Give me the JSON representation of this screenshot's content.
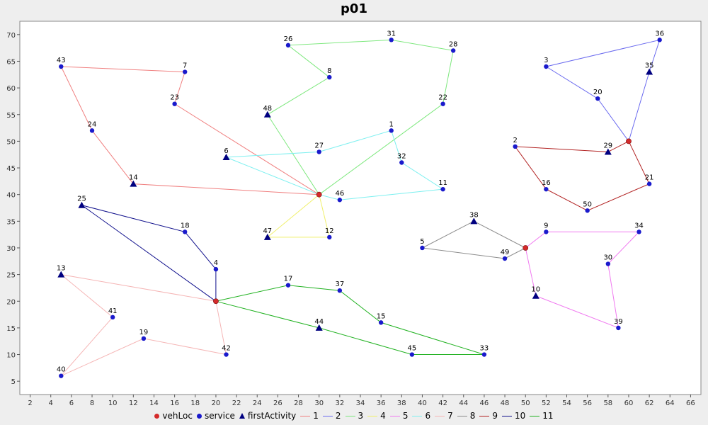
{
  "chart_data": {
    "type": "scatter",
    "title": "p01",
    "xlabel": "",
    "ylabel": "",
    "xlim": [
      1,
      67
    ],
    "ylim": [
      2.5,
      72.5
    ],
    "x_ticks": [
      2,
      4,
      6,
      8,
      10,
      12,
      14,
      16,
      18,
      20,
      22,
      24,
      26,
      28,
      30,
      32,
      34,
      36,
      38,
      40,
      42,
      44,
      46,
      48,
      50,
      52,
      54,
      56,
      58,
      60,
      62,
      64,
      66
    ],
    "y_ticks": [
      5,
      10,
      15,
      20,
      25,
      30,
      35,
      40,
      45,
      50,
      55,
      60,
      65,
      70
    ],
    "grid": false,
    "legend": "bottom",
    "colors": {
      "vehLoc": "#d42a2a",
      "service": "#1a1acc",
      "firstActivity": "#000080",
      "background": "#eeeeee"
    },
    "legend_items": [
      {
        "label": "vehLoc",
        "symbol": "dot",
        "color": "#d42a2a"
      },
      {
        "label": "service",
        "symbol": "dot",
        "color": "#1a1acc"
      },
      {
        "label": "firstActivity",
        "symbol": "triangle",
        "color": "#000080"
      },
      {
        "label": "1",
        "symbol": "line",
        "color": "#f08080"
      },
      {
        "label": "2",
        "symbol": "line",
        "color": "#6b6bef"
      },
      {
        "label": "3",
        "symbol": "line",
        "color": "#7ee87e"
      },
      {
        "label": "4",
        "symbol": "line",
        "color": "#f0f06a"
      },
      {
        "label": "5",
        "symbol": "line",
        "color": "#f07af0"
      },
      {
        "label": "6",
        "symbol": "line",
        "color": "#7ef0f0"
      },
      {
        "label": "7",
        "symbol": "line",
        "color": "#f5b5b5"
      },
      {
        "label": "8",
        "symbol": "line",
        "color": "#8c8c8c"
      },
      {
        "label": "9",
        "symbol": "line",
        "color": "#b22222"
      },
      {
        "label": "10",
        "symbol": "line",
        "color": "#10108c"
      },
      {
        "label": "11",
        "symbol": "line",
        "color": "#22b222"
      }
    ],
    "depots": [
      {
        "x": 30,
        "y": 40
      },
      {
        "x": 20,
        "y": 20
      },
      {
        "x": 60,
        "y": 50
      },
      {
        "x": 50,
        "y": 30
      }
    ],
    "points": [
      {
        "id": "1",
        "x": 37,
        "y": 52,
        "first": false
      },
      {
        "id": "2",
        "x": 49,
        "y": 49,
        "first": false
      },
      {
        "id": "3",
        "x": 52,
        "y": 64,
        "first": false
      },
      {
        "id": "4",
        "x": 20,
        "y": 26,
        "first": false
      },
      {
        "id": "5",
        "x": 40,
        "y": 30,
        "first": false
      },
      {
        "id": "6",
        "x": 21,
        "y": 47,
        "first": true
      },
      {
        "id": "7",
        "x": 17,
        "y": 63,
        "first": false
      },
      {
        "id": "8",
        "x": 31,
        "y": 62,
        "first": false
      },
      {
        "id": "9",
        "x": 52,
        "y": 33,
        "first": false
      },
      {
        "id": "10",
        "x": 51,
        "y": 21,
        "first": true
      },
      {
        "id": "11",
        "x": 42,
        "y": 41,
        "first": false
      },
      {
        "id": "12",
        "x": 31,
        "y": 32,
        "first": false
      },
      {
        "id": "13",
        "x": 5,
        "y": 25,
        "first": true
      },
      {
        "id": "14",
        "x": 12,
        "y": 42,
        "first": true
      },
      {
        "id": "15",
        "x": 36,
        "y": 16,
        "first": false
      },
      {
        "id": "16",
        "x": 52,
        "y": 41,
        "first": false
      },
      {
        "id": "17",
        "x": 27,
        "y": 23,
        "first": false
      },
      {
        "id": "18",
        "x": 17,
        "y": 33,
        "first": false
      },
      {
        "id": "19",
        "x": 13,
        "y": 13,
        "first": false
      },
      {
        "id": "20",
        "x": 57,
        "y": 58,
        "first": false
      },
      {
        "id": "21",
        "x": 62,
        "y": 42,
        "first": false
      },
      {
        "id": "22",
        "x": 42,
        "y": 57,
        "first": false
      },
      {
        "id": "23",
        "x": 16,
        "y": 57,
        "first": false
      },
      {
        "id": "24",
        "x": 8,
        "y": 52,
        "first": false
      },
      {
        "id": "25",
        "x": 7,
        "y": 38,
        "first": true
      },
      {
        "id": "26",
        "x": 27,
        "y": 68,
        "first": false
      },
      {
        "id": "27",
        "x": 30,
        "y": 48,
        "first": false
      },
      {
        "id": "28",
        "x": 43,
        "y": 67,
        "first": false
      },
      {
        "id": "29",
        "x": 58,
        "y": 48,
        "first": true
      },
      {
        "id": "30",
        "x": 58,
        "y": 27,
        "first": false
      },
      {
        "id": "31",
        "x": 37,
        "y": 69,
        "first": false
      },
      {
        "id": "32",
        "x": 38,
        "y": 46,
        "first": false
      },
      {
        "id": "33",
        "x": 46,
        "y": 10,
        "first": false
      },
      {
        "id": "34",
        "x": 61,
        "y": 33,
        "first": false
      },
      {
        "id": "35",
        "x": 62,
        "y": 63,
        "first": true
      },
      {
        "id": "36",
        "x": 63,
        "y": 69,
        "first": false
      },
      {
        "id": "37",
        "x": 32,
        "y": 22,
        "first": false
      },
      {
        "id": "38",
        "x": 45,
        "y": 35,
        "first": true
      },
      {
        "id": "39",
        "x": 59,
        "y": 15,
        "first": false
      },
      {
        "id": "40",
        "x": 5,
        "y": 6,
        "first": false
      },
      {
        "id": "41",
        "x": 10,
        "y": 17,
        "first": false
      },
      {
        "id": "42",
        "x": 21,
        "y": 10,
        "first": false
      },
      {
        "id": "43",
        "x": 5,
        "y": 64,
        "first": false
      },
      {
        "id": "44",
        "x": 30,
        "y": 15,
        "first": true
      },
      {
        "id": "45",
        "x": 39,
        "y": 10,
        "first": false
      },
      {
        "id": "46",
        "x": 32,
        "y": 39,
        "first": false
      },
      {
        "id": "47",
        "x": 25,
        "y": 32,
        "first": true
      },
      {
        "id": "48",
        "x": 25,
        "y": 55,
        "first": true
      },
      {
        "id": "49",
        "x": 48,
        "y": 28,
        "first": false
      },
      {
        "id": "50",
        "x": 56,
        "y": 37,
        "first": false
      }
    ],
    "series": [
      {
        "name": "1",
        "color": "#f08080",
        "route": [
          [
            30,
            40
          ],
          [
            12,
            42
          ],
          [
            8,
            52
          ],
          [
            5,
            64
          ],
          [
            17,
            63
          ],
          [
            16,
            57
          ],
          [
            30,
            40
          ]
        ]
      },
      {
        "name": "2",
        "color": "#6b6bef",
        "route": [
          [
            60,
            50
          ],
          [
            62,
            63
          ],
          [
            63,
            69
          ],
          [
            52,
            64
          ],
          [
            57,
            58
          ],
          [
            60,
            50
          ]
        ]
      },
      {
        "name": "3",
        "color": "#7ee87e",
        "route": [
          [
            30,
            40
          ],
          [
            25,
            55
          ],
          [
            31,
            62
          ],
          [
            27,
            68
          ],
          [
            37,
            69
          ],
          [
            43,
            67
          ],
          [
            42,
            57
          ],
          [
            30,
            40
          ]
        ]
      },
      {
        "name": "4",
        "color": "#f0f06a",
        "route": [
          [
            30,
            40
          ],
          [
            25,
            32
          ],
          [
            31,
            32
          ],
          [
            30,
            40
          ]
        ]
      },
      {
        "name": "5",
        "color": "#f07af0",
        "route": [
          [
            50,
            30
          ],
          [
            51,
            21
          ],
          [
            59,
            15
          ],
          [
            58,
            27
          ],
          [
            61,
            33
          ],
          [
            52,
            33
          ],
          [
            50,
            30
          ]
        ]
      },
      {
        "name": "6",
        "color": "#7ef0f0",
        "route": [
          [
            30,
            40
          ],
          [
            21,
            47
          ],
          [
            30,
            48
          ],
          [
            37,
            52
          ],
          [
            38,
            46
          ],
          [
            42,
            41
          ],
          [
            32,
            39
          ],
          [
            30,
            40
          ]
        ]
      },
      {
        "name": "7",
        "color": "#f5b5b5",
        "route": [
          [
            20,
            20
          ],
          [
            5,
            25
          ],
          [
            10,
            17
          ],
          [
            5,
            6
          ],
          [
            13,
            13
          ],
          [
            21,
            10
          ],
          [
            20,
            20
          ]
        ]
      },
      {
        "name": "8",
        "color": "#8c8c8c",
        "route": [
          [
            50,
            30
          ],
          [
            45,
            35
          ],
          [
            40,
            30
          ],
          [
            48,
            28
          ],
          [
            50,
            30
          ]
        ]
      },
      {
        "name": "9",
        "color": "#b22222",
        "route": [
          [
            60,
            50
          ],
          [
            58,
            48
          ],
          [
            49,
            49
          ],
          [
            52,
            41
          ],
          [
            56,
            37
          ],
          [
            62,
            42
          ],
          [
            60,
            50
          ]
        ]
      },
      {
        "name": "10",
        "color": "#10108c",
        "route": [
          [
            20,
            20
          ],
          [
            7,
            38
          ],
          [
            17,
            33
          ],
          [
            20,
            26
          ],
          [
            20,
            20
          ]
        ]
      },
      {
        "name": "11",
        "color": "#22b222",
        "route": [
          [
            20,
            20
          ],
          [
            30,
            15
          ],
          [
            39,
            10
          ],
          [
            46,
            10
          ],
          [
            36,
            16
          ],
          [
            32,
            22
          ],
          [
            27,
            23
          ],
          [
            20,
            20
          ]
        ]
      }
    ]
  }
}
